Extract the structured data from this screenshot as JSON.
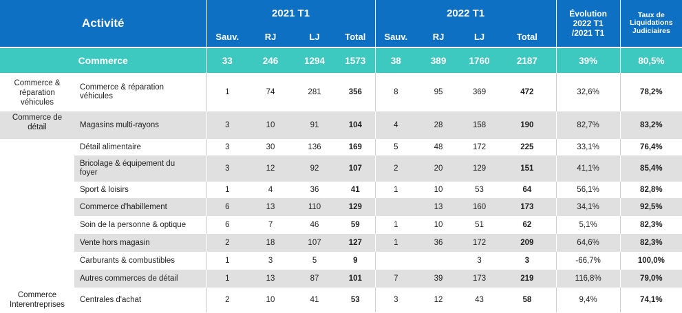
{
  "header": {
    "activity": "Activité",
    "year_2021": "2021 T1",
    "year_2022": "2022 T1",
    "sub": [
      "Sauv.",
      "RJ",
      "LJ",
      "Total"
    ],
    "evolution": [
      "Évolution",
      "2022 T1",
      "/2021 T1"
    ],
    "taux": [
      "Taux de",
      "Liquidations",
      "Judiciaires"
    ]
  },
  "total": {
    "label": "Commerce",
    "y2021": [
      "33",
      "246",
      "1294",
      "1573"
    ],
    "y2022": [
      "38",
      "389",
      "1760",
      "2187"
    ],
    "evol": "39%",
    "taux": "80,5%"
  },
  "categories": {
    "c1": [
      "Commerce &",
      "réparation",
      "véhicules"
    ],
    "c2": [
      "Commerce de",
      "détail"
    ],
    "c3": [
      "Commerce",
      "Interentreprises"
    ]
  },
  "rows": [
    {
      "label": [
        "Commerce & réparation",
        "véhicules"
      ],
      "y2021": [
        "1",
        "74",
        "281",
        "356"
      ],
      "y2022": [
        "8",
        "95",
        "369",
        "472"
      ],
      "evol": "32,6%",
      "taux": "78,2%"
    },
    {
      "label": [
        "Magasins multi-rayons"
      ],
      "y2021": [
        "3",
        "10",
        "91",
        "104"
      ],
      "y2022": [
        "4",
        "28",
        "158",
        "190"
      ],
      "evol": "82,7%",
      "taux": "83,2%"
    },
    {
      "label": [
        "Détail alimentaire"
      ],
      "y2021": [
        "3",
        "30",
        "136",
        "169"
      ],
      "y2022": [
        "5",
        "48",
        "172",
        "225"
      ],
      "evol": "33,1%",
      "taux": "76,4%"
    },
    {
      "label": [
        "Bricolage & équipement du",
        "foyer"
      ],
      "y2021": [
        "3",
        "12",
        "92",
        "107"
      ],
      "y2022": [
        "2",
        "20",
        "129",
        "151"
      ],
      "evol": "41,1%",
      "taux": "85,4%"
    },
    {
      "label": [
        "Sport & loisirs"
      ],
      "y2021": [
        "1",
        "4",
        "36",
        "41"
      ],
      "y2022": [
        "1",
        "10",
        "53",
        "64"
      ],
      "evol": "56,1%",
      "taux": "82,8%"
    },
    {
      "label": [
        "Commerce d'habillement"
      ],
      "y2021": [
        "6",
        "13",
        "110",
        "129"
      ],
      "y2022": [
        "",
        "13",
        "160",
        "173"
      ],
      "evol": "34,1%",
      "taux": "92,5%"
    },
    {
      "label": [
        "Soin de la personne & optique"
      ],
      "y2021": [
        "6",
        "7",
        "46",
        "59"
      ],
      "y2022": [
        "1",
        "10",
        "51",
        "62"
      ],
      "evol": "5,1%",
      "taux": "82,3%"
    },
    {
      "label": [
        "Vente hors magasin"
      ],
      "y2021": [
        "2",
        "18",
        "107",
        "127"
      ],
      "y2022": [
        "1",
        "36",
        "172",
        "209"
      ],
      "evol": "64,6%",
      "taux": "82,3%"
    },
    {
      "label": [
        "Carburants & combustibles"
      ],
      "y2021": [
        "1",
        "3",
        "5",
        "9"
      ],
      "y2022": [
        "",
        "",
        "3",
        "3"
      ],
      "evol": "-66,7%",
      "taux": "100,0%"
    },
    {
      "label": [
        "Autres commerces de détail"
      ],
      "y2021": [
        "1",
        "13",
        "87",
        "101"
      ],
      "y2022": [
        "7",
        "39",
        "173",
        "219"
      ],
      "evol": "116,8%",
      "taux": "79,0%"
    },
    {
      "label": [
        "Centrales d'achat"
      ],
      "y2021": [
        "2",
        "10",
        "41",
        "53"
      ],
      "y2022": [
        "3",
        "12",
        "43",
        "58"
      ],
      "evol": "9,4%",
      "taux": "74,1%"
    }
  ],
  "colors": {
    "header_blue": "#0e70c2",
    "total_teal": "#3ec9c0",
    "row_gray": "#e0e0e0"
  }
}
